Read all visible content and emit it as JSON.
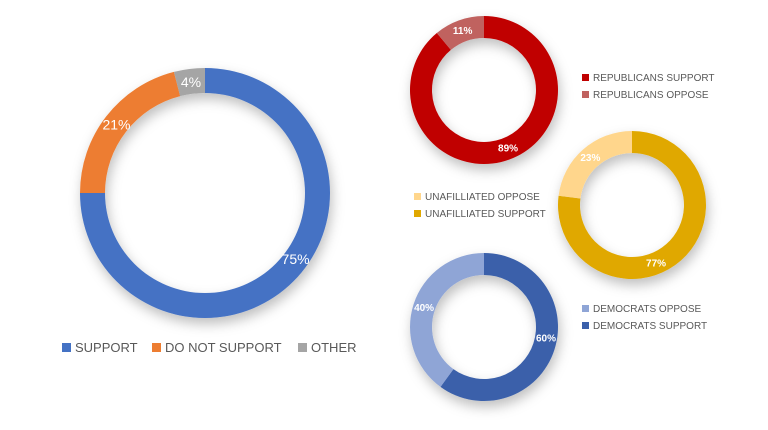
{
  "chart_data": [
    {
      "type": "pie",
      "id": "overall",
      "categories": [
        "SUPPORT",
        "DO NOT SUPPORT",
        "OTHER"
      ],
      "values": [
        75,
        21,
        4
      ],
      "labels": [
        "75%",
        "21%",
        "4%"
      ],
      "colors": [
        "#4472C4",
        "#ED7D31",
        "#A5A5A5"
      ],
      "legend": {
        "placement": "bottom",
        "entries": [
          "SUPPORT",
          "DO NOT SUPPORT",
          "OTHER"
        ]
      }
    },
    {
      "type": "pie",
      "id": "republicans",
      "categories": [
        "REPUBLICANS SUPPORT",
        "REPUBLICANS OPPOSE"
      ],
      "values": [
        89,
        11
      ],
      "labels": [
        "89%",
        "11%"
      ],
      "colors": [
        "#C00000",
        "#C0625F"
      ],
      "legend": {
        "placement": "right",
        "entries": [
          "REPUBLICANS SUPPORT",
          "REPUBLICANS OPPOSE"
        ]
      }
    },
    {
      "type": "pie",
      "id": "unaffiliated",
      "categories": [
        "UNAFILLIATED SUPPORT",
        "UNAFILLIATED OPPOSE"
      ],
      "values": [
        77,
        23
      ],
      "labels": [
        "77%",
        "23%"
      ],
      "colors": [
        "#E0A800",
        "#FFD68C"
      ],
      "legend": {
        "placement": "left",
        "entries": [
          "UNAFILLIATED OPPOSE",
          "UNAFILLIATED SUPPORT"
        ],
        "entry_colors": [
          "#FFD68C",
          "#E0A800"
        ]
      }
    },
    {
      "type": "pie",
      "id": "democrats",
      "categories": [
        "DEMOCRATS SUPPORT",
        "DEMOCRATS OPPOSE"
      ],
      "values": [
        60,
        40
      ],
      "labels": [
        "60%",
        "40%"
      ],
      "colors": [
        "#3A60AA",
        "#8FA5D6"
      ],
      "legend": {
        "placement": "right",
        "entries": [
          "DEMOCRATS OPPOSE",
          "DEMOCRATS SUPPORT"
        ],
        "entry_colors": [
          "#8FA5D6",
          "#3A60AA"
        ]
      }
    }
  ]
}
